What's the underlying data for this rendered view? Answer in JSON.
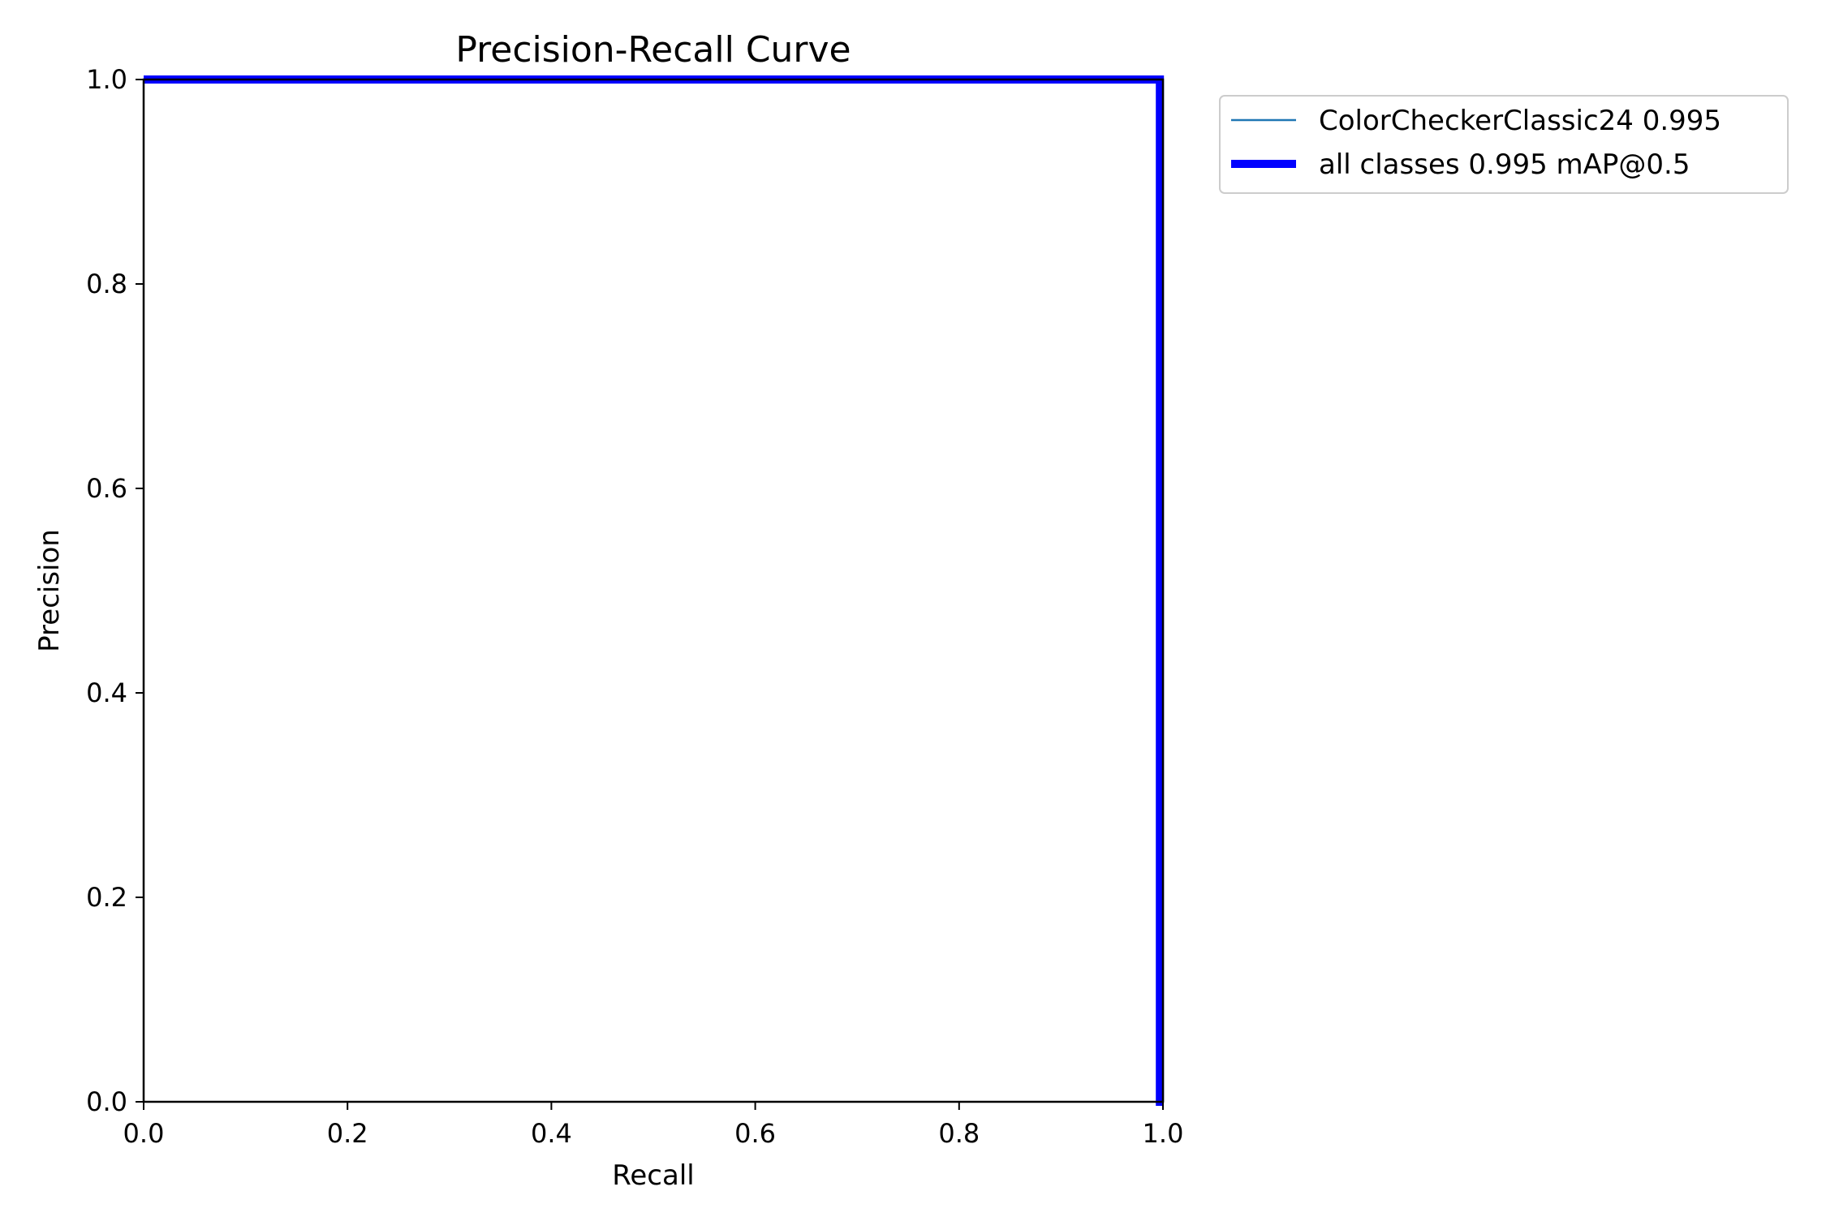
{
  "chart_data": {
    "type": "line",
    "title": "Precision-Recall Curve",
    "xlabel": "Recall",
    "ylabel": "Precision",
    "xlim": [
      0,
      1
    ],
    "ylim": [
      0,
      1
    ],
    "xticks": [
      "0.0",
      "0.2",
      "0.4",
      "0.6",
      "0.8",
      "1.0"
    ],
    "yticks": [
      "0.0",
      "0.2",
      "0.4",
      "0.6",
      "0.8",
      "1.0"
    ],
    "grid": false,
    "legend_position": "outside-top-right",
    "series": [
      {
        "name": "ColorCheckerClassic24 0.995",
        "color": "#1f77b4",
        "x": [
          0,
          0.997,
          0.997,
          1.0
        ],
        "y": [
          1.0,
          1.0,
          0.0,
          0.0
        ]
      },
      {
        "name": "all classes 0.995 mAP@0.5",
        "color": "#0000ff",
        "x": [
          0,
          0.997,
          0.997,
          1.0
        ],
        "y": [
          1.0,
          1.0,
          0.0,
          0.0
        ]
      }
    ]
  }
}
